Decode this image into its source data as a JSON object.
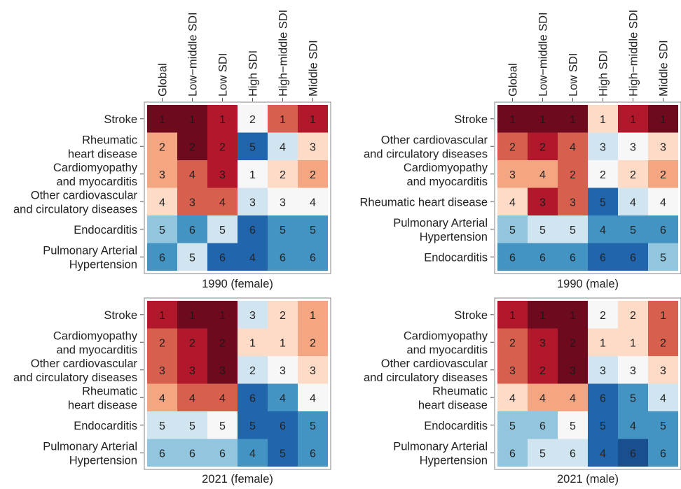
{
  "figure": {
    "columns": [
      "Global",
      "Low−middle SDI",
      "Low SDI",
      "High SDI",
      "High−middle SDI",
      "Middle SDI"
    ],
    "color_scale": {
      "1": "#6e0a1e",
      "2": "#b2182b",
      "3": "#d6604d",
      "4": "#f4a582",
      "5": "#fddbc7",
      "6": "#f7f7f7",
      "7": "#d1e5f0",
      "8": "#92c5de",
      "9": "#4393c3",
      "10": "#2166ac",
      "11": "#1a4f8f"
    }
  },
  "chart_data": [
    {
      "type": "heatmap",
      "title": "1990 (female)",
      "columns": [
        "Global",
        "Low−middle SDI",
        "Low SDI",
        "High SDI",
        "High−middle SDI",
        "Middle SDI"
      ],
      "rows": [
        {
          "label": [
            "Stroke"
          ],
          "values": [
            1,
            1,
            1,
            2,
            1,
            1
          ],
          "levels": [
            1,
            1,
            2,
            6,
            3,
            2
          ]
        },
        {
          "label": [
            "Rheumatic",
            "heart disease"
          ],
          "values": [
            2,
            2,
            2,
            5,
            4,
            3
          ],
          "levels": [
            4,
            1,
            2,
            10,
            7,
            5
          ]
        },
        {
          "label": [
            "Cardiomyopathy",
            "and myocarditis"
          ],
          "values": [
            3,
            4,
            3,
            1,
            2,
            2
          ],
          "levels": [
            4,
            3,
            2,
            6,
            5,
            4
          ]
        },
        {
          "label": [
            "Other cardiovascular",
            "and circulatory diseases"
          ],
          "values": [
            4,
            3,
            4,
            3,
            3,
            4
          ],
          "levels": [
            5,
            3,
            3,
            7,
            6,
            6
          ]
        },
        {
          "label": [
            "Endocarditis"
          ],
          "values": [
            5,
            6,
            5,
            6,
            5,
            5
          ],
          "levels": [
            8,
            9,
            7,
            10,
            9,
            9
          ]
        },
        {
          "label": [
            "Pulmonary Arterial",
            "Hypertension"
          ],
          "values": [
            6,
            5,
            6,
            4,
            6,
            6
          ],
          "levels": [
            9,
            7,
            10,
            10,
            9,
            9
          ]
        }
      ]
    },
    {
      "type": "heatmap",
      "title": "1990 (male)",
      "columns": [
        "Global",
        "Low−middle SDI",
        "Low SDI",
        "High SDI",
        "High−middle SDI",
        "Middle SDI"
      ],
      "rows": [
        {
          "label": [
            "Stroke"
          ],
          "values": [
            1,
            1,
            1,
            1,
            1,
            1
          ],
          "levels": [
            1,
            1,
            1,
            5,
            2,
            1
          ]
        },
        {
          "label": [
            "Other cardiovascular",
            "and circulatory diseases"
          ],
          "values": [
            2,
            2,
            4,
            3,
            3,
            3
          ],
          "levels": [
            3,
            2,
            3,
            7,
            6,
            5
          ]
        },
        {
          "label": [
            "Cardiomyopathy",
            "and myocarditis"
          ],
          "values": [
            3,
            4,
            2,
            2,
            2,
            2
          ],
          "levels": [
            4,
            4,
            3,
            6,
            5,
            4
          ]
        },
        {
          "label": [
            "Rheumatic heart disease"
          ],
          "values": [
            4,
            3,
            3,
            5,
            4,
            4
          ],
          "levels": [
            5,
            2,
            3,
            10,
            7,
            6
          ]
        },
        {
          "label": [
            "Pulmonary Arterial",
            "Hypertension"
          ],
          "values": [
            5,
            5,
            5,
            4,
            5,
            6
          ],
          "levels": [
            8,
            7,
            7,
            9,
            9,
            9
          ]
        },
        {
          "label": [
            "Endocarditis"
          ],
          "values": [
            6,
            6,
            6,
            6,
            6,
            5
          ],
          "levels": [
            9,
            9,
            9,
            10,
            10,
            8
          ]
        }
      ]
    },
    {
      "type": "heatmap",
      "title": "2021 (female)",
      "columns": [
        "Global",
        "Low−middle SDI",
        "Low SDI",
        "High SDI",
        "High−middle SDI",
        "Middle SDI"
      ],
      "rows": [
        {
          "label": [
            "Stroke"
          ],
          "values": [
            1,
            1,
            1,
            3,
            2,
            1
          ],
          "levels": [
            2,
            1,
            1,
            7,
            5,
            4
          ]
        },
        {
          "label": [
            "Cardiomyopathy",
            "and myocarditis"
          ],
          "values": [
            2,
            2,
            2,
            1,
            1,
            2
          ],
          "levels": [
            3,
            2,
            1,
            5,
            5,
            4
          ]
        },
        {
          "label": [
            "Other cardiovascular",
            "and circulatory diseases"
          ],
          "values": [
            3,
            3,
            3,
            2,
            3,
            3
          ],
          "levels": [
            3,
            2,
            1,
            7,
            6,
            5
          ]
        },
        {
          "label": [
            "Rheumatic",
            "heart disease"
          ],
          "values": [
            4,
            4,
            4,
            6,
            4,
            4
          ],
          "levels": [
            4,
            3,
            3,
            10,
            9,
            6
          ]
        },
        {
          "label": [
            "Endocarditis"
          ],
          "values": [
            5,
            5,
            5,
            5,
            6,
            5
          ],
          "levels": [
            7,
            7,
            6,
            10,
            10,
            9
          ]
        },
        {
          "label": [
            "Pulmonary Arterial",
            "Hypertension"
          ],
          "values": [
            6,
            6,
            6,
            4,
            5,
            6
          ],
          "levels": [
            8,
            8,
            8,
            9,
            10,
            9
          ]
        }
      ]
    },
    {
      "type": "heatmap",
      "title": "2021 (male)",
      "columns": [
        "Global",
        "Low−middle SDI",
        "Low SDI",
        "High SDI",
        "High−middle SDI",
        "Middle SDI"
      ],
      "rows": [
        {
          "label": [
            "Stroke"
          ],
          "values": [
            1,
            1,
            1,
            2,
            2,
            1
          ],
          "levels": [
            2,
            1,
            1,
            6,
            5,
            3
          ]
        },
        {
          "label": [
            "Cardiomyopathy",
            "and myocarditis"
          ],
          "values": [
            2,
            3,
            2,
            1,
            1,
            2
          ],
          "levels": [
            3,
            2,
            1,
            5,
            5,
            3
          ]
        },
        {
          "label": [
            "Other cardiovascular",
            "and circulatory diseases"
          ],
          "values": [
            3,
            2,
            3,
            3,
            3,
            3
          ],
          "levels": [
            3,
            2,
            1,
            7,
            6,
            5
          ]
        },
        {
          "label": [
            "Rheumatic",
            "heart disease"
          ],
          "values": [
            4,
            4,
            4,
            6,
            5,
            4
          ],
          "levels": [
            5,
            4,
            4,
            10,
            9,
            7
          ]
        },
        {
          "label": [
            "Endocarditis"
          ],
          "values": [
            5,
            6,
            5,
            5,
            4,
            5
          ],
          "levels": [
            8,
            8,
            6,
            10,
            9,
            9
          ]
        },
        {
          "label": [
            "Pulmonary Arterial",
            "Hypertension"
          ],
          "values": [
            6,
            5,
            6,
            4,
            6,
            6
          ],
          "levels": [
            8,
            7,
            7,
            10,
            11,
            9
          ]
        }
      ]
    }
  ]
}
